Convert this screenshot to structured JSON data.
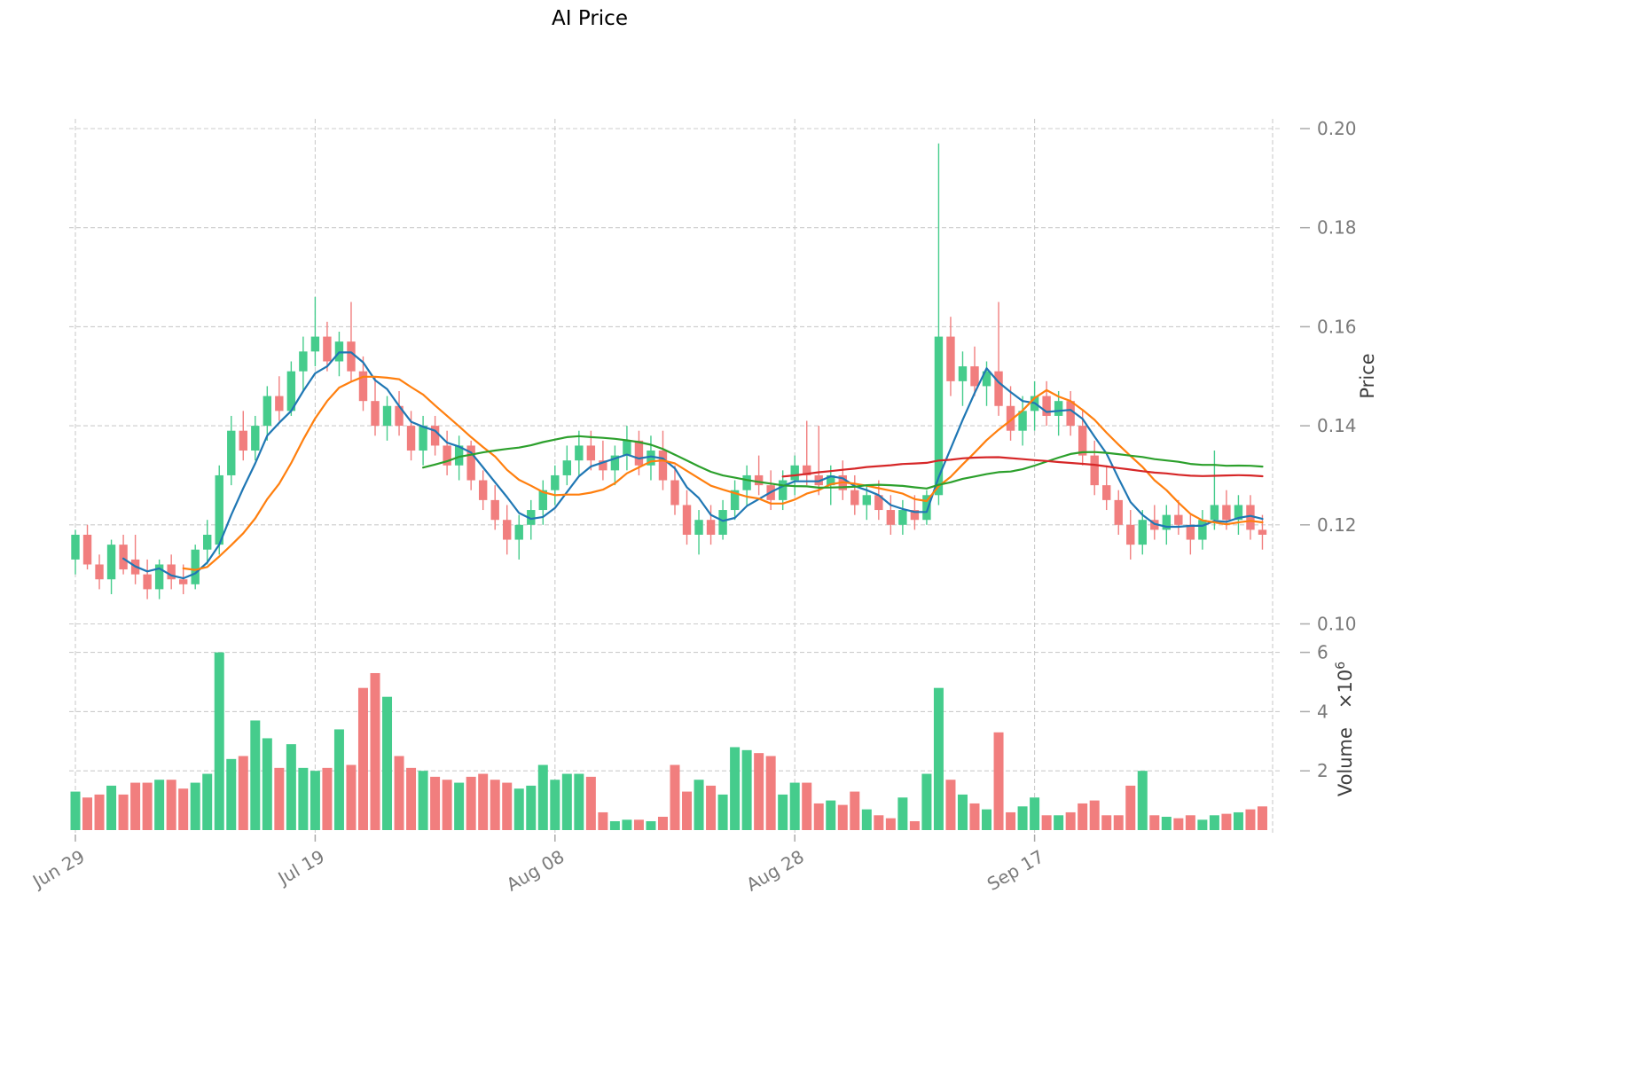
{
  "chart_data": {
    "type": "candlestick",
    "title": "AI Price",
    "ylabel": "Price",
    "volume_label": "Volume",
    "volume_multiplier": "×10",
    "volume_exponent": "6",
    "price_ylim": [
      0.1,
      0.2
    ],
    "price_ticks": [
      0.1,
      0.12,
      0.14,
      0.16,
      0.18,
      0.2
    ],
    "volume_ticks_millions": [
      2,
      4,
      6
    ],
    "x_tick_labels": [
      "Jun 29",
      "Jul 19",
      "Aug 08",
      "Aug 28",
      "Sep 17"
    ],
    "x_tick_indices": [
      0,
      20,
      40,
      60,
      80
    ],
    "colors": {
      "up": "#45CC8C",
      "down": "#F17E7E",
      "grid": "#cccccc",
      "tick_text": "#7a7a7a",
      "axis_label_text": "#3d3d3d"
    },
    "moving_averages": [
      {
        "window": 5,
        "color": "#1f77b4"
      },
      {
        "window": 10,
        "color": "#ff7f0e"
      },
      {
        "window": 30,
        "color": "#2ca02c"
      },
      {
        "window": 60,
        "color": "#d62728"
      }
    ],
    "ohlcv": [
      [
        0.113,
        0.119,
        0.11,
        0.118,
        1.3
      ],
      [
        0.118,
        0.12,
        0.111,
        0.112,
        1.1
      ],
      [
        0.112,
        0.114,
        0.107,
        0.109,
        1.2
      ],
      [
        0.109,
        0.117,
        0.106,
        0.116,
        1.5
      ],
      [
        0.116,
        0.118,
        0.11,
        0.111,
        1.2
      ],
      [
        0.113,
        0.118,
        0.108,
        0.11,
        1.6
      ],
      [
        0.11,
        0.113,
        0.105,
        0.107,
        1.6
      ],
      [
        0.107,
        0.113,
        0.105,
        0.112,
        1.7
      ],
      [
        0.112,
        0.114,
        0.107,
        0.109,
        1.7
      ],
      [
        0.109,
        0.112,
        0.106,
        0.108,
        1.4
      ],
      [
        0.108,
        0.116,
        0.107,
        0.115,
        1.6
      ],
      [
        0.115,
        0.121,
        0.112,
        0.118,
        1.9
      ],
      [
        0.116,
        0.132,
        0.114,
        0.13,
        6.0
      ],
      [
        0.13,
        0.142,
        0.128,
        0.139,
        2.4
      ],
      [
        0.139,
        0.143,
        0.133,
        0.135,
        2.5
      ],
      [
        0.135,
        0.142,
        0.133,
        0.14,
        3.7
      ],
      [
        0.14,
        0.148,
        0.137,
        0.146,
        3.1
      ],
      [
        0.146,
        0.15,
        0.141,
        0.143,
        2.1
      ],
      [
        0.143,
        0.153,
        0.142,
        0.151,
        2.9
      ],
      [
        0.151,
        0.158,
        0.147,
        0.155,
        2.1
      ],
      [
        0.155,
        0.166,
        0.152,
        0.158,
        2.0
      ],
      [
        0.158,
        0.161,
        0.151,
        0.153,
        2.1
      ],
      [
        0.153,
        0.159,
        0.15,
        0.157,
        3.4
      ],
      [
        0.157,
        0.165,
        0.149,
        0.151,
        2.2
      ],
      [
        0.151,
        0.154,
        0.143,
        0.145,
        4.8
      ],
      [
        0.145,
        0.15,
        0.138,
        0.14,
        5.3
      ],
      [
        0.14,
        0.146,
        0.137,
        0.144,
        4.5
      ],
      [
        0.144,
        0.147,
        0.138,
        0.14,
        2.5
      ],
      [
        0.14,
        0.143,
        0.133,
        0.135,
        2.1
      ],
      [
        0.135,
        0.142,
        0.132,
        0.14,
        2.0
      ],
      [
        0.14,
        0.142,
        0.134,
        0.136,
        1.8
      ],
      [
        0.136,
        0.139,
        0.13,
        0.132,
        1.7
      ],
      [
        0.132,
        0.138,
        0.129,
        0.136,
        1.6
      ],
      [
        0.136,
        0.137,
        0.127,
        0.129,
        1.8
      ],
      [
        0.129,
        0.131,
        0.123,
        0.125,
        1.9
      ],
      [
        0.125,
        0.128,
        0.119,
        0.121,
        1.7
      ],
      [
        0.121,
        0.124,
        0.114,
        0.117,
        1.6
      ],
      [
        0.117,
        0.122,
        0.113,
        0.12,
        1.4
      ],
      [
        0.12,
        0.125,
        0.117,
        0.123,
        1.5
      ],
      [
        0.123,
        0.129,
        0.12,
        0.127,
        2.2
      ],
      [
        0.127,
        0.132,
        0.124,
        0.13,
        1.7
      ],
      [
        0.13,
        0.136,
        0.128,
        0.133,
        1.9
      ],
      [
        0.133,
        0.139,
        0.13,
        0.136,
        1.9
      ],
      [
        0.136,
        0.139,
        0.131,
        0.133,
        1.8
      ],
      [
        0.133,
        0.137,
        0.129,
        0.131,
        0.6
      ],
      [
        0.131,
        0.136,
        0.128,
        0.134,
        0.3
      ],
      [
        0.134,
        0.14,
        0.131,
        0.137,
        0.35
      ],
      [
        0.137,
        0.139,
        0.13,
        0.132,
        0.35
      ],
      [
        0.132,
        0.138,
        0.129,
        0.135,
        0.3
      ],
      [
        0.135,
        0.139,
        0.127,
        0.129,
        0.45
      ],
      [
        0.129,
        0.132,
        0.122,
        0.124,
        2.2
      ],
      [
        0.124,
        0.127,
        0.116,
        0.118,
        1.3
      ],
      [
        0.118,
        0.123,
        0.114,
        0.121,
        1.7
      ],
      [
        0.121,
        0.124,
        0.116,
        0.118,
        1.5
      ],
      [
        0.118,
        0.125,
        0.117,
        0.123,
        1.2
      ],
      [
        0.123,
        0.129,
        0.121,
        0.127,
        2.8
      ],
      [
        0.127,
        0.132,
        0.124,
        0.13,
        2.7
      ],
      [
        0.13,
        0.134,
        0.126,
        0.128,
        2.6
      ],
      [
        0.128,
        0.131,
        0.123,
        0.125,
        2.5
      ],
      [
        0.125,
        0.131,
        0.123,
        0.129,
        1.2
      ],
      [
        0.129,
        0.134,
        0.126,
        0.132,
        1.6
      ],
      [
        0.132,
        0.141,
        0.128,
        0.13,
        1.6
      ],
      [
        0.13,
        0.14,
        0.126,
        0.128,
        0.9
      ],
      [
        0.128,
        0.132,
        0.124,
        0.13,
        1.0
      ],
      [
        0.13,
        0.133,
        0.125,
        0.127,
        0.85
      ],
      [
        0.127,
        0.13,
        0.122,
        0.124,
        1.3
      ],
      [
        0.124,
        0.128,
        0.121,
        0.126,
        0.7
      ],
      [
        0.126,
        0.129,
        0.121,
        0.123,
        0.5
      ],
      [
        0.123,
        0.126,
        0.118,
        0.12,
        0.4
      ],
      [
        0.12,
        0.125,
        0.118,
        0.123,
        1.1
      ],
      [
        0.123,
        0.126,
        0.119,
        0.121,
        0.3
      ],
      [
        0.121,
        0.127,
        0.12,
        0.126,
        1.9
      ],
      [
        0.126,
        0.197,
        0.124,
        0.158,
        4.8
      ],
      [
        0.158,
        0.162,
        0.146,
        0.149,
        1.7
      ],
      [
        0.149,
        0.155,
        0.144,
        0.152,
        1.2
      ],
      [
        0.152,
        0.156,
        0.146,
        0.148,
        0.9
      ],
      [
        0.148,
        0.153,
        0.144,
        0.151,
        0.7
      ],
      [
        0.151,
        0.165,
        0.142,
        0.144,
        3.3
      ],
      [
        0.144,
        0.148,
        0.137,
        0.139,
        0.6
      ],
      [
        0.139,
        0.146,
        0.136,
        0.143,
        0.8
      ],
      [
        0.143,
        0.149,
        0.139,
        0.146,
        1.1
      ],
      [
        0.146,
        0.149,
        0.14,
        0.142,
        0.5
      ],
      [
        0.142,
        0.147,
        0.138,
        0.145,
        0.5
      ],
      [
        0.145,
        0.147,
        0.138,
        0.14,
        0.6
      ],
      [
        0.14,
        0.143,
        0.132,
        0.134,
        0.9
      ],
      [
        0.134,
        0.137,
        0.126,
        0.128,
        1.0
      ],
      [
        0.128,
        0.132,
        0.123,
        0.125,
        0.5
      ],
      [
        0.125,
        0.127,
        0.118,
        0.12,
        0.5
      ],
      [
        0.12,
        0.123,
        0.113,
        0.116,
        1.5
      ],
      [
        0.116,
        0.123,
        0.114,
        0.121,
        2.0
      ],
      [
        0.121,
        0.124,
        0.117,
        0.119,
        0.5
      ],
      [
        0.119,
        0.124,
        0.116,
        0.122,
        0.45
      ],
      [
        0.122,
        0.125,
        0.118,
        0.12,
        0.4
      ],
      [
        0.12,
        0.122,
        0.114,
        0.117,
        0.5
      ],
      [
        0.117,
        0.123,
        0.115,
        0.121,
        0.35
      ],
      [
        0.121,
        0.135,
        0.119,
        0.124,
        0.5
      ],
      [
        0.124,
        0.127,
        0.119,
        0.121,
        0.55
      ],
      [
        0.121,
        0.126,
        0.118,
        0.124,
        0.6
      ],
      [
        0.124,
        0.126,
        0.117,
        0.119,
        0.7
      ],
      [
        0.119,
        0.122,
        0.115,
        0.118,
        0.8
      ]
    ]
  }
}
